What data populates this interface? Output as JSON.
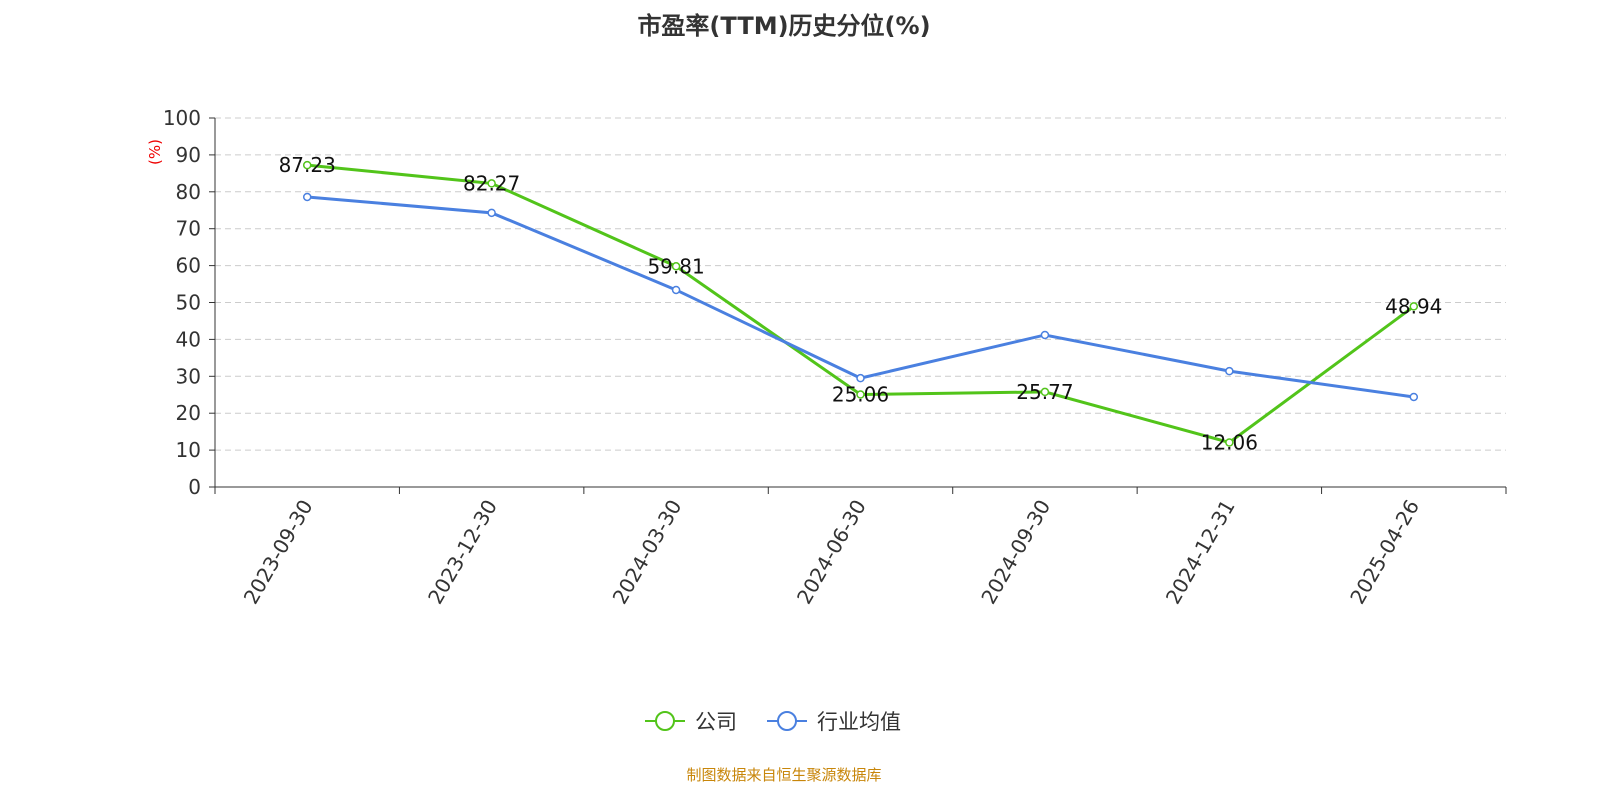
{
  "chart_data": {
    "type": "line",
    "title": "市盈率(TTM)历史分位(%)",
    "ylabel": "(%)",
    "ylim": [
      0,
      100
    ],
    "yticks": [
      0,
      10,
      20,
      30,
      40,
      50,
      60,
      70,
      80,
      90,
      100
    ],
    "grid": true,
    "legend_position": "bottom",
    "categories": [
      "2023-09-30",
      "2023-12-30",
      "2024-03-30",
      "2024-06-30",
      "2024-09-30",
      "2024-12-31",
      "2025-04-26"
    ],
    "series": [
      {
        "name": "公司",
        "color": "#52c41a",
        "values": [
          87.23,
          82.27,
          59.81,
          25.06,
          25.77,
          12.06,
          48.94
        ],
        "labels": [
          "87.23",
          "82.27",
          "59.81",
          "25.06",
          "25.77",
          "12.06",
          "48.94"
        ]
      },
      {
        "name": "行业均值",
        "color": "#4a80e0",
        "values": [
          78.6,
          74.3,
          53.4,
          29.5,
          41.2,
          31.4,
          24.4
        ]
      }
    ]
  },
  "source": "制图数据来自恒生聚源数据库"
}
